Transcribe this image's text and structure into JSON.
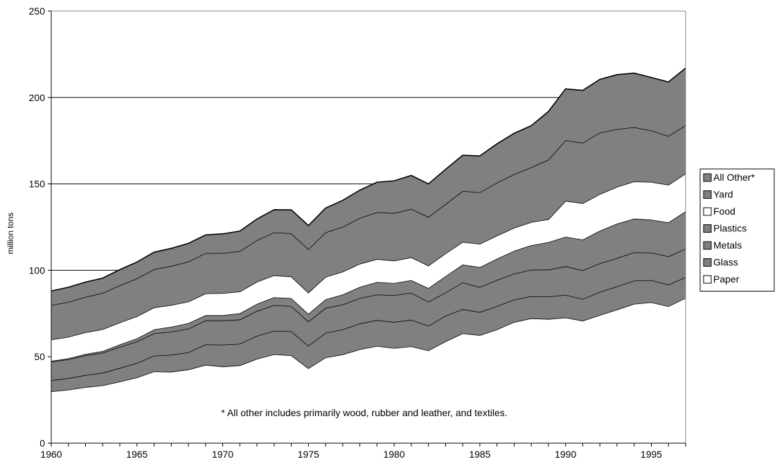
{
  "chart_data": {
    "type": "area",
    "stacked": true,
    "title": "",
    "xlabel": "",
    "ylabel": "million tons",
    "xlim": [
      1960,
      1997
    ],
    "ylim": [
      0,
      250
    ],
    "yticks": [
      0,
      50,
      100,
      150,
      200,
      250
    ],
    "xticks": [
      1960,
      1965,
      1970,
      1975,
      1980,
      1985,
      1990,
      1995
    ],
    "grid": "horizontal",
    "legend_position": "right",
    "annotation": "* All other includes primarily wood, rubber and leather, and textiles.",
    "x": [
      1960,
      1961,
      1962,
      1963,
      1964,
      1965,
      1966,
      1967,
      1968,
      1969,
      1970,
      1971,
      1972,
      1973,
      1974,
      1975,
      1976,
      1977,
      1978,
      1979,
      1980,
      1981,
      1982,
      1983,
      1984,
      1985,
      1986,
      1987,
      1988,
      1989,
      1990,
      1991,
      1992,
      1993,
      1994,
      1995,
      1996,
      1997
    ],
    "series": [
      {
        "name": "Paper",
        "color": "#ffffff",
        "values": [
          29.9,
          30.9,
          32.4,
          33.4,
          35.6,
          38.0,
          41.5,
          41.3,
          42.6,
          45.3,
          44.3,
          45.0,
          48.8,
          51.4,
          50.8,
          43.3,
          49.6,
          51.3,
          54.3,
          56.2,
          55.0,
          56.0,
          53.6,
          58.9,
          63.5,
          62.5,
          65.8,
          70.1,
          72.2,
          71.8,
          72.7,
          70.8,
          74.1,
          77.3,
          80.6,
          81.5,
          79.2,
          84.0
        ]
      },
      {
        "name": "Glass",
        "color": "#808080",
        "values": [
          6.5,
          6.7,
          7.0,
          7.3,
          7.9,
          8.4,
          9.1,
          9.8,
          10.0,
          11.8,
          12.7,
          12.5,
          13.3,
          13.6,
          13.9,
          13.1,
          14.2,
          14.5,
          14.9,
          15.0,
          15.1,
          15.4,
          14.3,
          14.8,
          14.0,
          13.3,
          13.5,
          13.0,
          12.8,
          13.0,
          13.1,
          12.6,
          13.4,
          13.4,
          13.4,
          12.8,
          12.5,
          12.0
        ]
      },
      {
        "name": "Metals",
        "color": "#808080",
        "values": [
          10.8,
          10.9,
          11.4,
          11.6,
          12.2,
          12.4,
          12.9,
          13.4,
          13.6,
          13.9,
          14.0,
          14.0,
          14.4,
          14.9,
          14.6,
          14.0,
          14.4,
          14.4,
          14.7,
          14.8,
          15.5,
          15.6,
          13.9,
          13.4,
          15.4,
          14.5,
          15.1,
          15.0,
          15.3,
          15.6,
          16.5,
          16.6,
          16.5,
          16.4,
          16.4,
          16.0,
          16.3,
          16.5
        ]
      },
      {
        "name": "Plastics",
        "color": "#808080",
        "values": [
          0.4,
          0.6,
          0.8,
          1.0,
          1.4,
          1.8,
          2.3,
          2.8,
          3.2,
          3.0,
          3.0,
          3.6,
          4.1,
          4.5,
          4.6,
          4.4,
          5.0,
          5.8,
          6.5,
          7.2,
          7.0,
          7.3,
          7.9,
          9.5,
          10.4,
          11.5,
          12.3,
          13.2,
          14.2,
          15.9,
          17.1,
          17.8,
          18.9,
          19.9,
          19.5,
          19.0,
          19.7,
          21.6
        ]
      },
      {
        "name": "Food",
        "color": "#ffffff",
        "values": [
          12.3,
          12.4,
          12.5,
          12.6,
          12.7,
          12.8,
          12.7,
          12.6,
          12.5,
          12.6,
          12.8,
          12.6,
          12.8,
          12.7,
          12.5,
          12.3,
          13.0,
          13.2,
          13.4,
          13.3,
          13.0,
          13.2,
          13.0,
          13.2,
          13.1,
          13.5,
          13.4,
          13.3,
          13.4,
          13.2,
          20.8,
          21.0,
          21.2,
          21.3,
          21.5,
          21.8,
          21.8,
          21.9
        ]
      },
      {
        "name": "Yard",
        "color": "#808080",
        "values": [
          20.0,
          20.2,
          20.5,
          21.0,
          21.5,
          21.9,
          22.1,
          22.6,
          23.1,
          23.3,
          23.2,
          23.4,
          24.0,
          24.8,
          25.0,
          25.1,
          25.7,
          26.0,
          26.5,
          27.1,
          27.5,
          28.0,
          28.2,
          28.5,
          29.5,
          29.8,
          30.6,
          31.0,
          31.7,
          34.5,
          35.0,
          35.0,
          35.5,
          33.4,
          31.4,
          29.8,
          28.2,
          28.0
        ]
      },
      {
        "name": "All Other*",
        "color": "#808080",
        "values": [
          8.2,
          8.5,
          8.6,
          8.6,
          9.1,
          9.5,
          9.9,
          10.2,
          10.6,
          10.6,
          11.1,
          11.6,
          12.3,
          13.2,
          13.6,
          13.7,
          14.1,
          15.3,
          16.1,
          17.4,
          18.7,
          19.4,
          19.1,
          20.1,
          20.7,
          21.1,
          22.5,
          23.7,
          24.1,
          27.9,
          29.8,
          30.3,
          30.9,
          31.5,
          31.3,
          30.7,
          31.3,
          33.0
        ]
      }
    ]
  }
}
